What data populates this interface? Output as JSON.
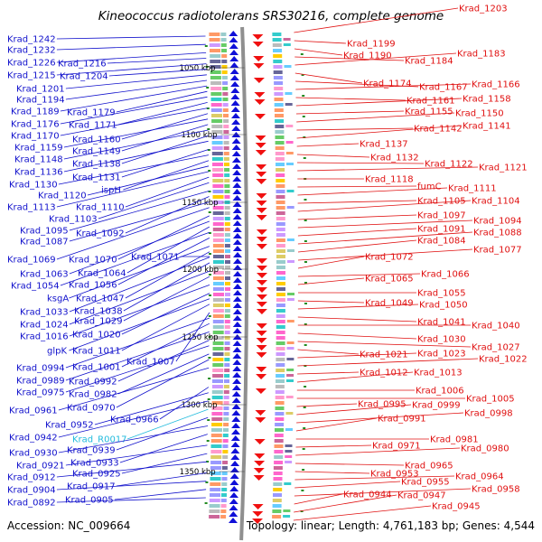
{
  "title": "Kineococcus radiotolerans SRS30216, complete genome",
  "accession": "Accession: NC_009664",
  "topology": "Topology: linear; Length: 4,761,183 bp; Genes: 4,544",
  "colors": {
    "left_label": "#1111cc",
    "right_label": "#e01010",
    "rna_label": "#22bbdd",
    "backbone": "#8f8f8f",
    "minus_arrow": "#1010d8",
    "plus_arrow": "#f01010",
    "rna_arrow": "#2255ff",
    "tick": "#228b22"
  },
  "scale_ticks": [
    {
      "label": "1050 kbp"
    },
    {
      "label": "1100 kbp"
    },
    {
      "label": "1150 kbp"
    },
    {
      "label": "1200 kbp"
    },
    {
      "label": "1250 kbp"
    },
    {
      "label": "1300 kbp"
    },
    {
      "label": "1350 kbp"
    }
  ],
  "left_genes": [
    "Krad_1242",
    "Krad_1232",
    "Krad_1226",
    "Krad_1216",
    "Krad_1215",
    "Krad_1204",
    "Krad_1201",
    "Krad_1194",
    "Krad_1189",
    "Krad_1179",
    "Krad_1176",
    "Krad_1171",
    "Krad_1170",
    "Krad_1160",
    "Krad_1159",
    "Krad_1149",
    "Krad_1148",
    "Krad_1138",
    "Krad_1136",
    "Krad_1131",
    "Krad_1130",
    "ispH",
    "Krad_1120",
    "Krad_1113",
    "Krad_1110",
    "Krad_1103",
    "Krad_1095",
    "Krad_1092",
    "Krad_1087",
    "Krad_1071",
    "Krad_1069",
    "Krad_1070",
    "Krad_1063",
    "Krad_1064",
    "Krad_1054",
    "Krad_1056",
    "ksgA",
    "Krad_1047",
    "Krad_1033",
    "Krad_1038",
    "Krad_1024",
    "Krad_1029",
    "Krad_1016",
    "Krad_1020",
    "glpK",
    "Krad_1011",
    "Krad_1007",
    "Krad_0994",
    "Krad_1001",
    "Krad_0989",
    "Krad_0992",
    "Krad_0975",
    "Krad_0982",
    "Krad_0970",
    "Krad_0961",
    "Krad_0966",
    "Krad_0952",
    "Krad_0942",
    "Krad_R0017",
    "Krad_0939",
    "Krad_0930",
    "Krad_0933",
    "Krad_0921",
    "Krad_0925",
    "Krad_0912",
    "Krad_0917",
    "Krad_0904",
    "Krad_0905",
    "Krad_0892"
  ],
  "right_genes": [
    "Krad_1203",
    "Krad_1199",
    "Krad_1190",
    "Krad_1184",
    "Krad_1183",
    "Krad_1174",
    "Krad_1167",
    "Krad_1166",
    "Krad_1161",
    "Krad_1158",
    "Krad_1155",
    "Krad_1150",
    "Krad_1142",
    "Krad_1141",
    "Krad_1137",
    "Krad_1132",
    "Krad_1122",
    "Krad_1121",
    "Krad_1118",
    "fumC",
    "Krad_1111",
    "Krad_1105",
    "Krad_1104",
    "Krad_1097",
    "Krad_1094",
    "Krad_1091",
    "Krad_1088",
    "Krad_1084",
    "Krad_1077",
    "Krad_1072",
    "Krad_1066",
    "Krad_1065",
    "Krad_1055",
    "Krad_1049",
    "Krad_1050",
    "Krad_1041",
    "Krad_1040",
    "Krad_1030",
    "Krad_1027",
    "Krad_1021",
    "Krad_1023",
    "Krad_1022",
    "Krad_1012",
    "Krad_1013",
    "Krad_1006",
    "Krad_1005",
    "Krad_0995",
    "Krad_0999",
    "Krad_0998",
    "Krad_0991",
    "Krad_0981",
    "Krad_0971",
    "Krad_0980",
    "Krad_0965",
    "Krad_0953",
    "Krad_0964",
    "Krad_0955",
    "Krad_0958",
    "Krad_0944",
    "Krad_0947",
    "Krad_0945"
  ]
}
